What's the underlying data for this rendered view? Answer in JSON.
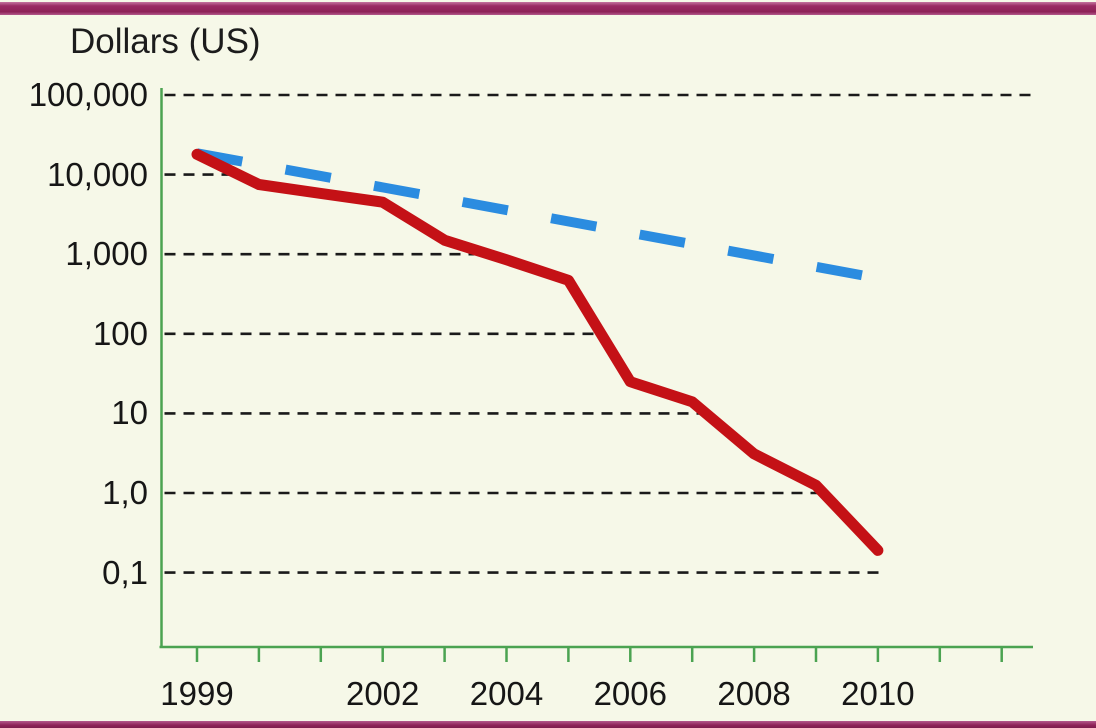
{
  "page": {
    "background_color": "#f6f8e8",
    "accent_bar_color": "#8e2257"
  },
  "chart_data": {
    "type": "line",
    "title": "Dollars (US)",
    "y_axis": {
      "scale": "log",
      "title": "Dollars (US)",
      "range": [
        0.01,
        100000
      ],
      "gridlines_dashed": true,
      "gridlines": [
        {
          "label": "100,000",
          "value": 100000
        },
        {
          "label": "10,000",
          "value": 10000
        },
        {
          "label": "1,000",
          "value": 1000
        },
        {
          "label": "100",
          "value": 100
        },
        {
          "label": "10",
          "value": 10
        },
        {
          "label": "1,0",
          "value": 1.0
        },
        {
          "label": "0,1",
          "value": 0.1
        }
      ]
    },
    "x_axis": {
      "tick_years": [
        1999,
        2000,
        2001,
        2002,
        2003,
        2004,
        2005,
        2006,
        2007,
        2008,
        2009,
        2010,
        2011,
        2012
      ],
      "labeled_ticks": [
        {
          "year": 1999,
          "label": "1999"
        },
        {
          "year": 2002,
          "label": "2002"
        },
        {
          "year": 2004,
          "label": "2004"
        },
        {
          "year": 2006,
          "label": "2006"
        },
        {
          "year": 2008,
          "label": "2008"
        },
        {
          "year": 2010,
          "label": "2010"
        }
      ]
    },
    "series": [
      {
        "name": "blue-dashed-trend-line",
        "style": "dashed",
        "color": "#2b8ce0",
        "points": [
          {
            "year": 1999,
            "value": 18500
          },
          {
            "year": 2010,
            "value": 500
          }
        ]
      },
      {
        "name": "red-solid-line",
        "style": "solid",
        "color": "#c41116",
        "points": [
          {
            "year": 1999,
            "value": 18000
          },
          {
            "year": 2000,
            "value": 7500
          },
          {
            "year": 2001,
            "value": 5800
          },
          {
            "year": 2002,
            "value": 4500
          },
          {
            "year": 2003,
            "value": 1500
          },
          {
            "year": 2004,
            "value": 850
          },
          {
            "year": 2005,
            "value": 470
          },
          {
            "year": 2006,
            "value": 25
          },
          {
            "year": 2007,
            "value": 14
          },
          {
            "year": 2008,
            "value": 3.1
          },
          {
            "year": 2009,
            "value": 1.25
          },
          {
            "year": 2010,
            "value": 0.19
          }
        ]
      }
    ],
    "colors": {
      "axis_green": "#4ba351",
      "gridline_black": "#1a1a1a",
      "text": "#161616"
    },
    "legend": "none"
  }
}
